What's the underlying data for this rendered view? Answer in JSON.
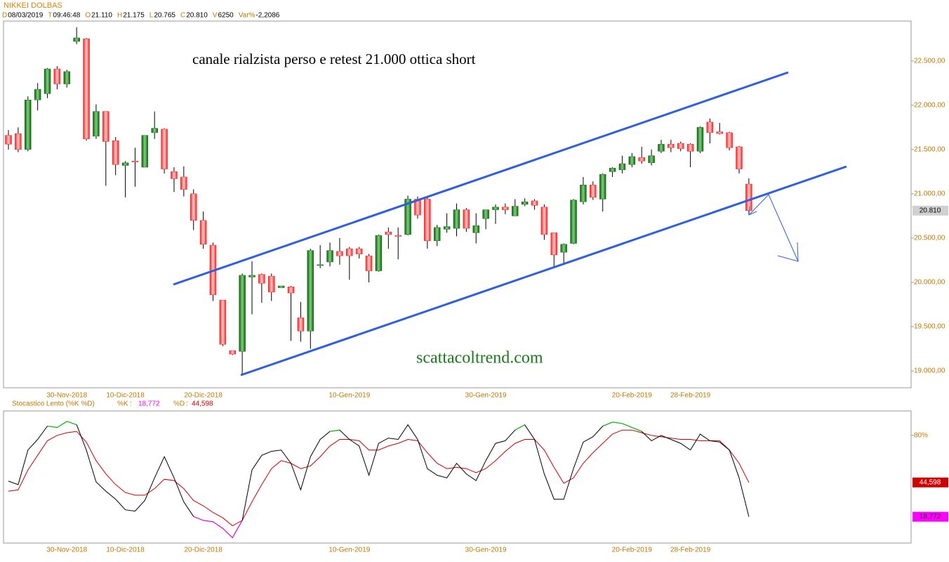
{
  "chart_data": [
    {
      "type": "candlestick",
      "title": "NIKKEI DOLBAS",
      "info": [
        {
          "key": "D",
          "value": "08/03/2019"
        },
        {
          "key": "T",
          "value": "09:46:48"
        },
        {
          "key": "O",
          "value": "21.110"
        },
        {
          "key": "H",
          "value": "21.175"
        },
        {
          "key": "L",
          "value": "20.765"
        },
        {
          "key": "C",
          "value": "20.810"
        },
        {
          "key": "V",
          "value": "6250"
        },
        {
          "key": "Var%",
          "value": "-2,2086"
        }
      ],
      "annotations": [
        "canale rialzista perso e retest 21.000 ottica short",
        "scattacoltrend.com"
      ],
      "categories": [
        null,
        null,
        null,
        null,
        null,
        null,
        "30-Nov-2018",
        null,
        null,
        null,
        null,
        null,
        "10-Dic-2018",
        null,
        null,
        null,
        null,
        null,
        null,
        null,
        "20-Dic-2018",
        null,
        null,
        null,
        null,
        null,
        null,
        null,
        null,
        null,
        null,
        null,
        null,
        null,
        null,
        "10-Gen-2019",
        null,
        null,
        null,
        null,
        null,
        null,
        null,
        null,
        null,
        null,
        null,
        null,
        null,
        "30-Gen-2019",
        null,
        null,
        null,
        null,
        null,
        null,
        null,
        null,
        null,
        null,
        null,
        null,
        null,
        null,
        "20-Feb-2019",
        null,
        null,
        null,
        null,
        null,
        "28-Feb-2019",
        null,
        null,
        null,
        null,
        null,
        null
      ],
      "open": [
        21660,
        21680,
        21500,
        22060,
        22130,
        22410,
        22240,
        22720,
        22750,
        21650,
        21930,
        21600,
        21320,
        21370,
        21300,
        21690,
        21730,
        21250,
        21190,
        21000,
        20700,
        20420,
        19800,
        19230,
        19220,
        20060,
        20090,
        20070,
        19940,
        19950,
        19600,
        19450,
        20190,
        20230,
        20350,
        20380,
        20380,
        20300,
        20130,
        20570,
        20530,
        20540,
        20940,
        20940,
        20470,
        20600,
        20610,
        20820,
        20560,
        20720,
        20820,
        20850,
        20750,
        20880,
        20920,
        20850,
        20560,
        20340,
        20440,
        20910,
        21100,
        20940,
        21250,
        21270,
        21330,
        21410,
        21350,
        21480,
        21560,
        21570,
        21560,
        21480,
        21810,
        21700,
        21690,
        21530,
        21110
      ],
      "high": [
        21720,
        21750,
        22100,
        22250,
        22420,
        22440,
        22400,
        22880,
        22760,
        22010,
        21930,
        21640,
        21370,
        21520,
        21650,
        21930,
        21740,
        21300,
        21310,
        21050,
        20800,
        20450,
        19800,
        19230,
        20100,
        20240,
        20100,
        20100,
        19960,
        19960,
        19780,
        20380,
        20420,
        20450,
        20500,
        20400,
        20400,
        20320,
        20540,
        20620,
        20620,
        20980,
        20970,
        20960,
        20650,
        20780,
        20890,
        20840,
        20780,
        20820,
        20880,
        20890,
        20940,
        20950,
        20940,
        20880,
        20560,
        20440,
        20940,
        21190,
        21140,
        21230,
        21300,
        21430,
        21460,
        21530,
        21500,
        21610,
        21610,
        21590,
        21570,
        21760,
        21850,
        21800,
        21700,
        21540,
        21175
      ],
      "low": [
        21500,
        21470,
        21480,
        21940,
        22080,
        22180,
        22200,
        22690,
        21600,
        21620,
        21090,
        21210,
        20960,
        21080,
        21300,
        21620,
        21230,
        21020,
        20970,
        20590,
        20380,
        19790,
        19280,
        19180,
        18960,
        19640,
        19770,
        19790,
        19940,
        19340,
        19330,
        19250,
        20160,
        20180,
        20200,
        20030,
        20270,
        20000,
        20120,
        20380,
        20260,
        20530,
        20720,
        20380,
        20410,
        20560,
        20520,
        20570,
        20440,
        20600,
        20660,
        20770,
        20750,
        20860,
        20820,
        20480,
        20160,
        20200,
        20430,
        20880,
        20930,
        20800,
        21190,
        21230,
        21300,
        21340,
        21320,
        21460,
        21470,
        21480,
        21300,
        21460,
        21570,
        21670,
        21490,
        21230,
        20765
      ],
      "close": [
        21560,
        21500,
        22060,
        22180,
        22410,
        22240,
        22380,
        22760,
        21620,
        21930,
        21590,
        21330,
        21350,
        21360,
        21660,
        21740,
        21280,
        21170,
        21050,
        20700,
        20430,
        19860,
        19300,
        19190,
        20080,
        20080,
        19990,
        19890,
        19960,
        19880,
        19450,
        20360,
        20200,
        20360,
        20300,
        20300,
        20320,
        20130,
        20530,
        20540,
        20520,
        20940,
        20760,
        20470,
        20620,
        20630,
        20820,
        20610,
        20640,
        20820,
        20850,
        20820,
        20860,
        20910,
        20870,
        20540,
        20310,
        20430,
        20930,
        21100,
        20960,
        21220,
        21290,
        21340,
        21420,
        21370,
        21430,
        21560,
        21520,
        21510,
        21480,
        21750,
        21690,
        21680,
        21520,
        21280,
        20810
      ],
      "close_label": "20.810",
      "up_color": "#1a7a1a",
      "down_color": "#ff2020",
      "line_color": "#2f5fe0",
      "ylim": [
        18810,
        22950
      ],
      "yticks": [
        {
          "value": 19000,
          "label": "19.000,00"
        },
        {
          "value": 19500,
          "label": "19.500,00"
        },
        {
          "value": 20000,
          "label": "20.000,00"
        },
        {
          "value": 20500,
          "label": "20.500,00"
        },
        {
          "value": 21000,
          "label": "21.000,00"
        },
        {
          "value": 21500,
          "label": "21.500,00"
        },
        {
          "value": 22000,
          "label": "22.000,00"
        },
        {
          "value": 22500,
          "label": "22.500,00"
        }
      ]
    },
    {
      "type": "line",
      "title": "Stocastico Lento (%K %D)",
      "series": [
        {
          "name": "%K",
          "color": "#000000",
          "over_color": "#00cc00",
          "under_color": "#ff00ff",
          "last_label": "18,772",
          "values": [
            45.6,
            43,
            69,
            77,
            87,
            86,
            90.6,
            88,
            69,
            45,
            38,
            32,
            24,
            23,
            31,
            48,
            64,
            48,
            30,
            19,
            16,
            15,
            10,
            3,
            16,
            54,
            65,
            68,
            69,
            59,
            39,
            64,
            77,
            83,
            84,
            77,
            72,
            50,
            74,
            78,
            77,
            88,
            77,
            55,
            50,
            48,
            59,
            51,
            46,
            61,
            74,
            76,
            84,
            88,
            77,
            51,
            32,
            32,
            55,
            75,
            79,
            87,
            90,
            89,
            86,
            83,
            76,
            80,
            77,
            74,
            69,
            81,
            76,
            75,
            69,
            48,
            18.772
          ]
        },
        {
          "name": "%D",
          "color": "#cc0000",
          "last_label": "44,598",
          "values": [
            38,
            39,
            54,
            65,
            76,
            80,
            82,
            83,
            75,
            61,
            51,
            43,
            37,
            35,
            35,
            40,
            47,
            46,
            40,
            31,
            27,
            22,
            18,
            12,
            16,
            30,
            43,
            55,
            61,
            59,
            55,
            57,
            64,
            72,
            77,
            77,
            76,
            69,
            69,
            72,
            74,
            77,
            76,
            67,
            59,
            55,
            56,
            55,
            52,
            55,
            61,
            68,
            74,
            77,
            77,
            69,
            56,
            44,
            48,
            59,
            67,
            74,
            81,
            84,
            84,
            82,
            80,
            79,
            78,
            77,
            77,
            76,
            76,
            76,
            69,
            59,
            44.598
          ]
        }
      ],
      "oversold": 20,
      "ylim": [
        -1,
        98.4
      ],
      "yticks": [
        {
          "value": 80,
          "label": "80%"
        }
      ]
    }
  ]
}
